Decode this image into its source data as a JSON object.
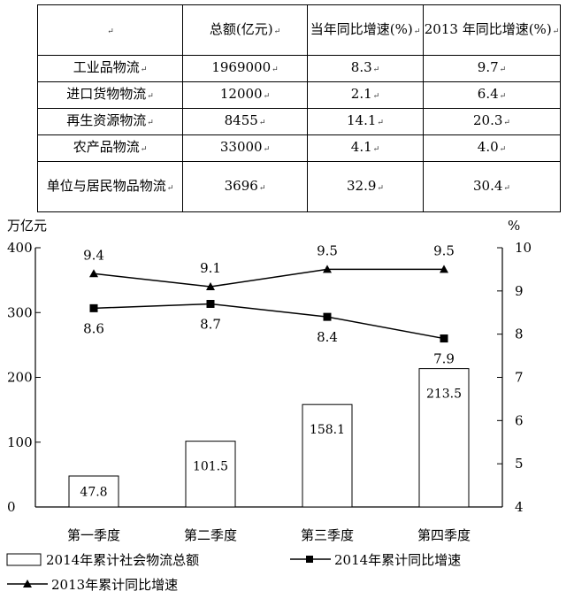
{
  "table": {
    "headers": [
      "",
      "总额(亿元)",
      "当年同比增速(%)",
      "2013 年同比增速(%)"
    ],
    "rows": [
      {
        "name": "工业品物流",
        "total": "1969000",
        "cur": "8.3",
        "prev": "9.7"
      },
      {
        "name": "进口货物物流",
        "total": "12000",
        "cur": "2.1",
        "prev": "6.4"
      },
      {
        "name": "再生资源物流",
        "total": "8455",
        "cur": "14.1",
        "prev": "20.3"
      },
      {
        "name": "农产品物流",
        "total": "33000",
        "cur": "4.1",
        "prev": "4.0"
      },
      {
        "name": "单位与居民物品物流",
        "total": "3696",
        "cur": "32.9",
        "prev": "30.4"
      }
    ]
  },
  "chart_data": {
    "type": "bar",
    "categories": [
      "第一季度",
      "第二季度",
      "第三季度",
      "第四季度"
    ],
    "ylabel_left": "万亿元",
    "ylabel_right": "%",
    "ylim_left": [
      0,
      400
    ],
    "yticks_left": [
      "0",
      "100",
      "200",
      "300",
      "400"
    ],
    "ylim_right": [
      4,
      10
    ],
    "yticks_right": [
      "4",
      "5",
      "6",
      "7",
      "8",
      "9",
      "10"
    ],
    "series": [
      {
        "name": "2014年累计社会物流总额",
        "type": "bar",
        "axis": "left",
        "values": [
          47.8,
          101.5,
          158.1,
          213.5
        ],
        "labels": [
          "47.8",
          "101.5",
          "158.1",
          "213.5"
        ]
      },
      {
        "name": "2014年累计同比增速",
        "type": "line",
        "marker": "square",
        "axis": "right",
        "values": [
          8.6,
          8.7,
          8.4,
          7.9
        ],
        "labels": [
          "8.6",
          "8.7",
          "8.4",
          "7.9"
        ]
      },
      {
        "name": "2013年累计同比增速",
        "type": "line",
        "marker": "triangle",
        "axis": "right",
        "values": [
          9.4,
          9.1,
          9.5,
          9.5
        ],
        "labels": [
          "9.4",
          "9.1",
          "9.5",
          "9.5"
        ]
      }
    ]
  }
}
